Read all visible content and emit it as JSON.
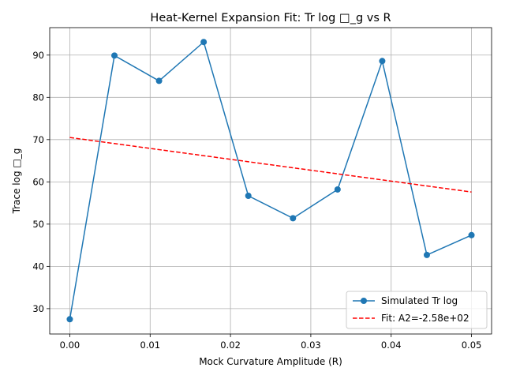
{
  "chart_data": {
    "type": "line",
    "title": "Heat-Kernel Expansion Fit: Tr log □_g vs R",
    "xlabel": "Mock Curvature Amplitude (R)",
    "ylabel": "Trace log □_g",
    "xlim": [
      -0.0025,
      0.0525
    ],
    "ylim": [
      24,
      96.5
    ],
    "xticks": [
      0.0,
      0.01,
      0.02,
      0.03,
      0.04,
      0.05
    ],
    "xtick_labels": [
      "0.00",
      "0.01",
      "0.02",
      "0.03",
      "0.04",
      "0.05"
    ],
    "yticks": [
      30,
      40,
      50,
      60,
      70,
      80,
      90
    ],
    "ytick_labels": [
      "30",
      "40",
      "50",
      "60",
      "70",
      "80",
      "90"
    ],
    "grid": true,
    "legend_position": "lower-right",
    "series": [
      {
        "name": "Simulated Tr log",
        "kind": "line-marker",
        "color": "#1f77b4",
        "x": [
          0.0,
          0.005556,
          0.011111,
          0.016667,
          0.022222,
          0.027778,
          0.033333,
          0.038889,
          0.044444,
          0.05
        ],
        "y": [
          27.5,
          89.9,
          83.9,
          93.1,
          56.7,
          51.4,
          58.2,
          88.6,
          42.7,
          47.4
        ]
      },
      {
        "name": "Fit: A2=-2.58e+02",
        "kind": "dashed",
        "color": "#ff0000",
        "x": [
          0.0,
          0.05
        ],
        "y": [
          70.5,
          57.6
        ]
      }
    ]
  }
}
